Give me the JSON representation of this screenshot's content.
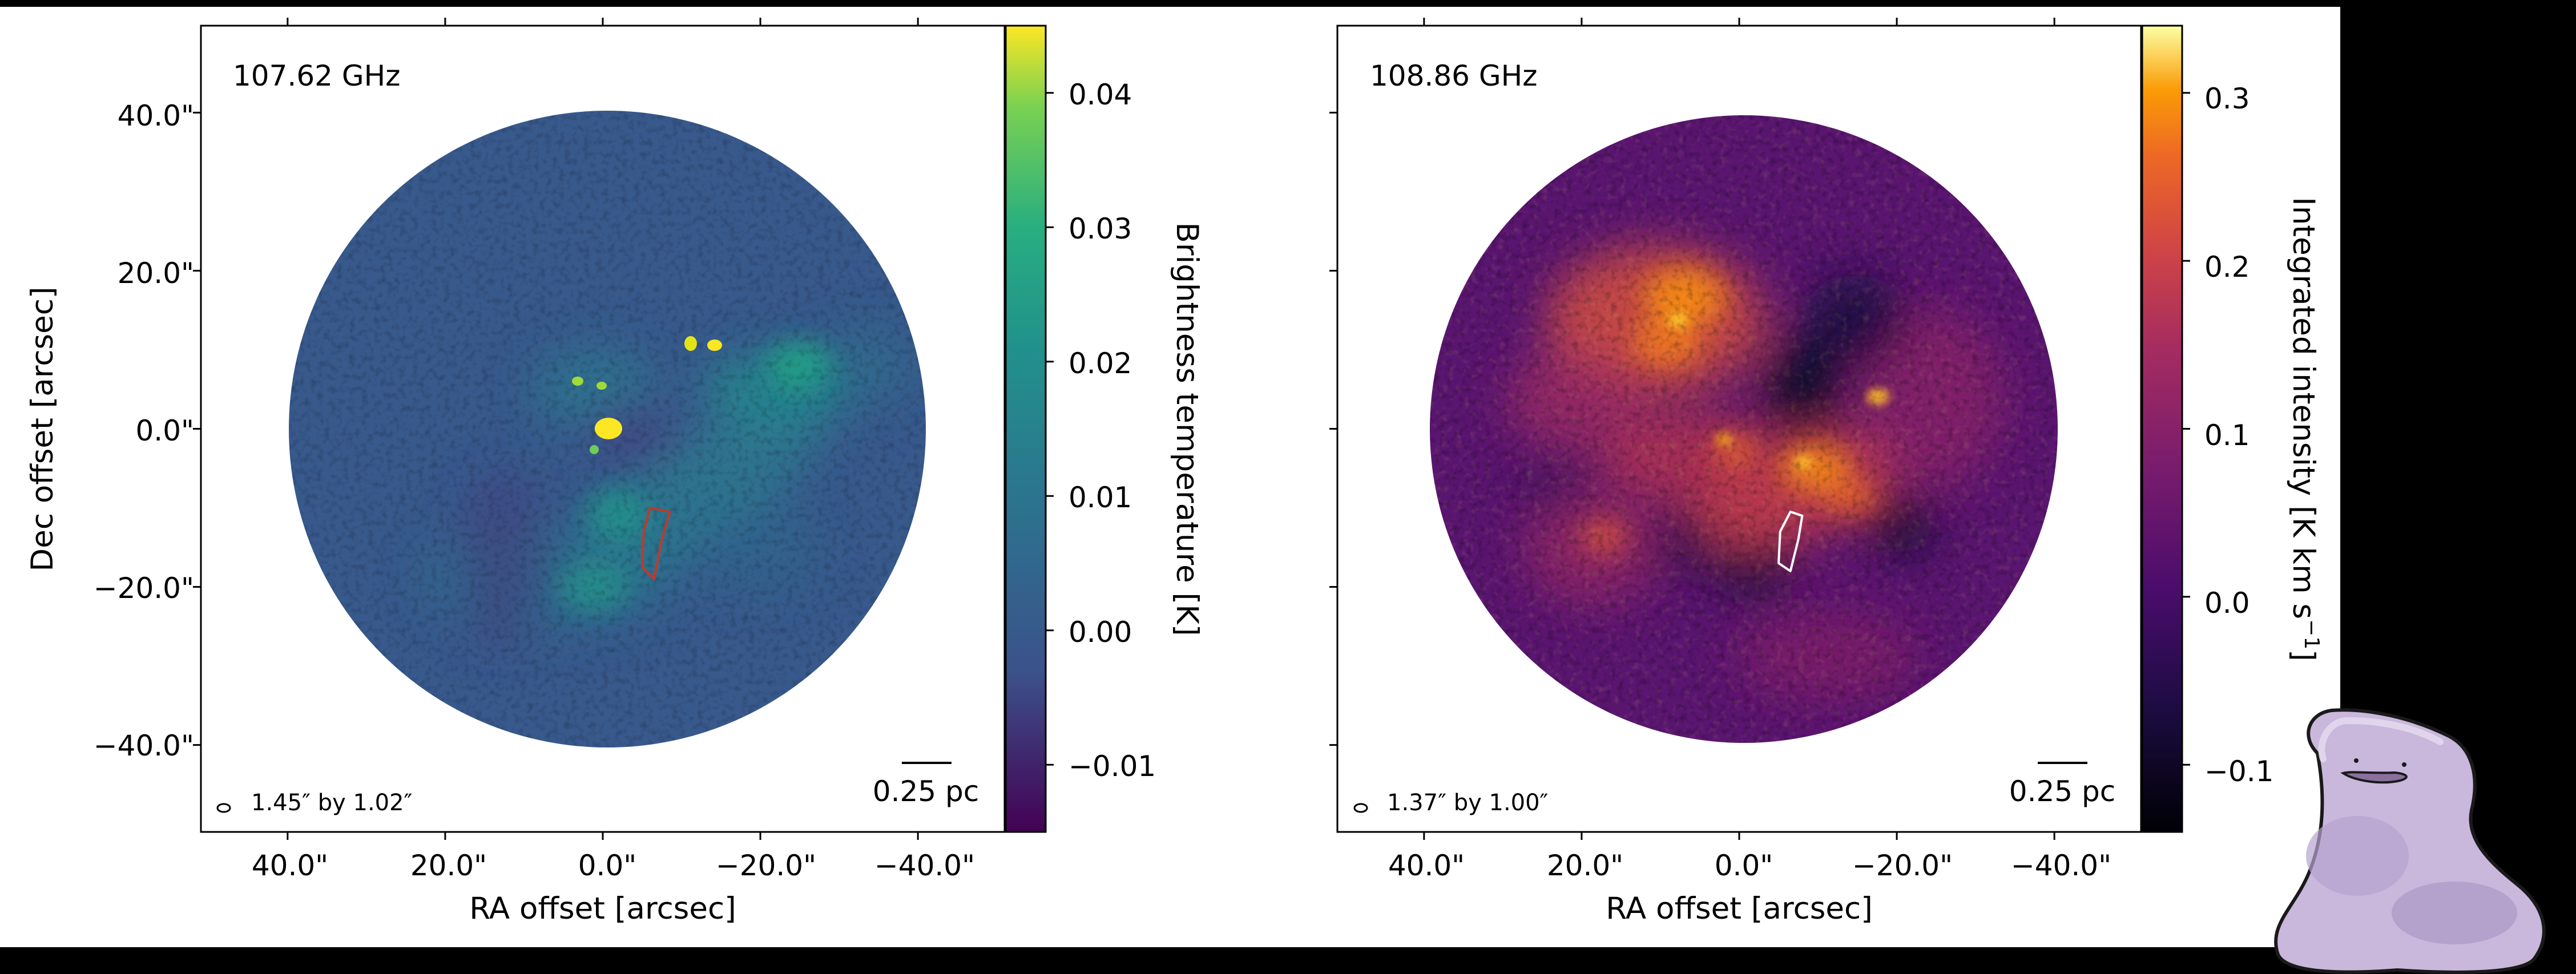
{
  "chart_data": [
    {
      "type": "heatmap",
      "panel_label": "107.62 GHz",
      "xlabel": "RA offset [arcsec]",
      "ylabel": "Dec offset [arcsec]",
      "x_ticks": [
        "40.0\"",
        "20.0\"",
        "0.0\"",
        "−20.0\"",
        "−40.0\""
      ],
      "x_tick_values": [
        40,
        20,
        0,
        -20,
        -40
      ],
      "y_ticks": [
        "40.0\"",
        "20.0\"",
        "0.0\"",
        "−20.0\"",
        "−40.0\""
      ],
      "y_tick_values": [
        40,
        20,
        0,
        -20,
        -40
      ],
      "xlim": [
        51,
        -51
      ],
      "ylim": [
        -51,
        51
      ],
      "field_radius_arcsec": 40,
      "colorbar": {
        "label": "Brightness temperature [K]",
        "colormap": "viridis",
        "range": [
          -0.015,
          0.045
        ],
        "ticks": [
          "0.04",
          "0.03",
          "0.02",
          "0.01",
          "0.00",
          "−0.01"
        ],
        "tick_values": [
          0.04,
          0.03,
          0.02,
          0.01,
          0.0,
          -0.01
        ]
      },
      "beam_label": "1.45″ by 1.02″",
      "scale_bar_label": "0.25 pc",
      "contour_color": "#c0392b",
      "bright_sources_arcsec": [
        [
          -0.5,
          0.2
        ],
        [
          -11,
          11
        ],
        [
          -13.5,
          10.8
        ],
        [
          4,
          6
        ],
        [
          0.5,
          5.5
        ],
        [
          1.5,
          -2.5
        ]
      ],
      "contour_arcsec": [
        [
          -6,
          -10
        ],
        [
          -8.5,
          -10.5
        ],
        [
          -7.5,
          -14
        ],
        [
          -6.5,
          -19
        ],
        [
          -5,
          -17.5
        ],
        [
          -5.2,
          -13
        ]
      ]
    },
    {
      "type": "heatmap",
      "panel_label": "108.86 GHz",
      "xlabel": "RA offset [arcsec]",
      "ylabel": "",
      "x_ticks": [
        "40.0\"",
        "20.0\"",
        "0.0\"",
        "−20.0\"",
        "−40.0\""
      ],
      "x_tick_values": [
        40,
        20,
        0,
        -20,
        -40
      ],
      "y_tick_values": [
        40,
        20,
        0,
        -20,
        -40
      ],
      "xlim": [
        51,
        -51
      ],
      "ylim": [
        -51,
        51
      ],
      "field_radius_arcsec": 40,
      "colorbar": {
        "label_main": "Integrated intensity [K km s",
        "label_sup": "−1",
        "label_close": "]",
        "colormap": "inferno",
        "range": [
          -0.14,
          0.34
        ],
        "ticks": [
          "0.3",
          "0.2",
          "0.1",
          "0.0",
          "−0.1"
        ],
        "tick_values": [
          0.3,
          0.2,
          0.1,
          0.0,
          -0.1
        ]
      },
      "beam_label": "1.37″ by 1.00″",
      "scale_bar_label": "0.25 pc",
      "contour_color": "#ffffff",
      "contour_arcsec": [
        [
          -6.5,
          -10.5
        ],
        [
          -8,
          -11
        ],
        [
          -7.5,
          -14
        ],
        [
          -6.5,
          -18
        ],
        [
          -5,
          -17
        ],
        [
          -5.2,
          -13
        ]
      ]
    }
  ]
}
